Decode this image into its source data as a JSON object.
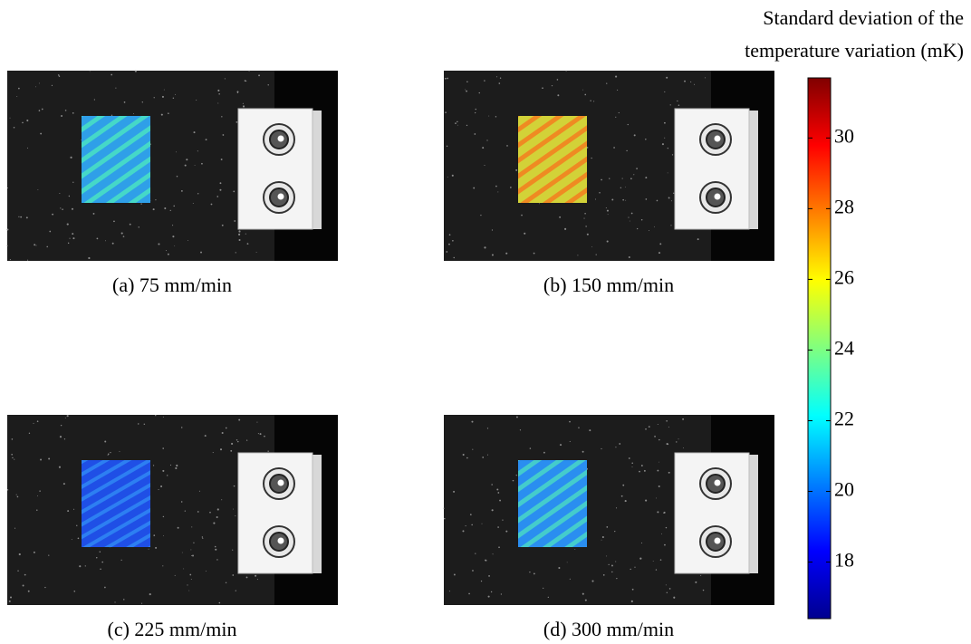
{
  "panels": [
    {
      "caption": "(a) 75 mm/min"
    },
    {
      "caption": "(b) 150 mm/min"
    },
    {
      "caption": "(c) 225 mm/min"
    },
    {
      "caption": "(d) 300 mm/min"
    }
  ],
  "colorbar": {
    "title": [
      "Standard deviation of the",
      "temperature variation (mK)"
    ],
    "range": [
      16.4,
      31.7
    ],
    "ticks": [
      18,
      20,
      22,
      24,
      26,
      28,
      30
    ]
  }
}
